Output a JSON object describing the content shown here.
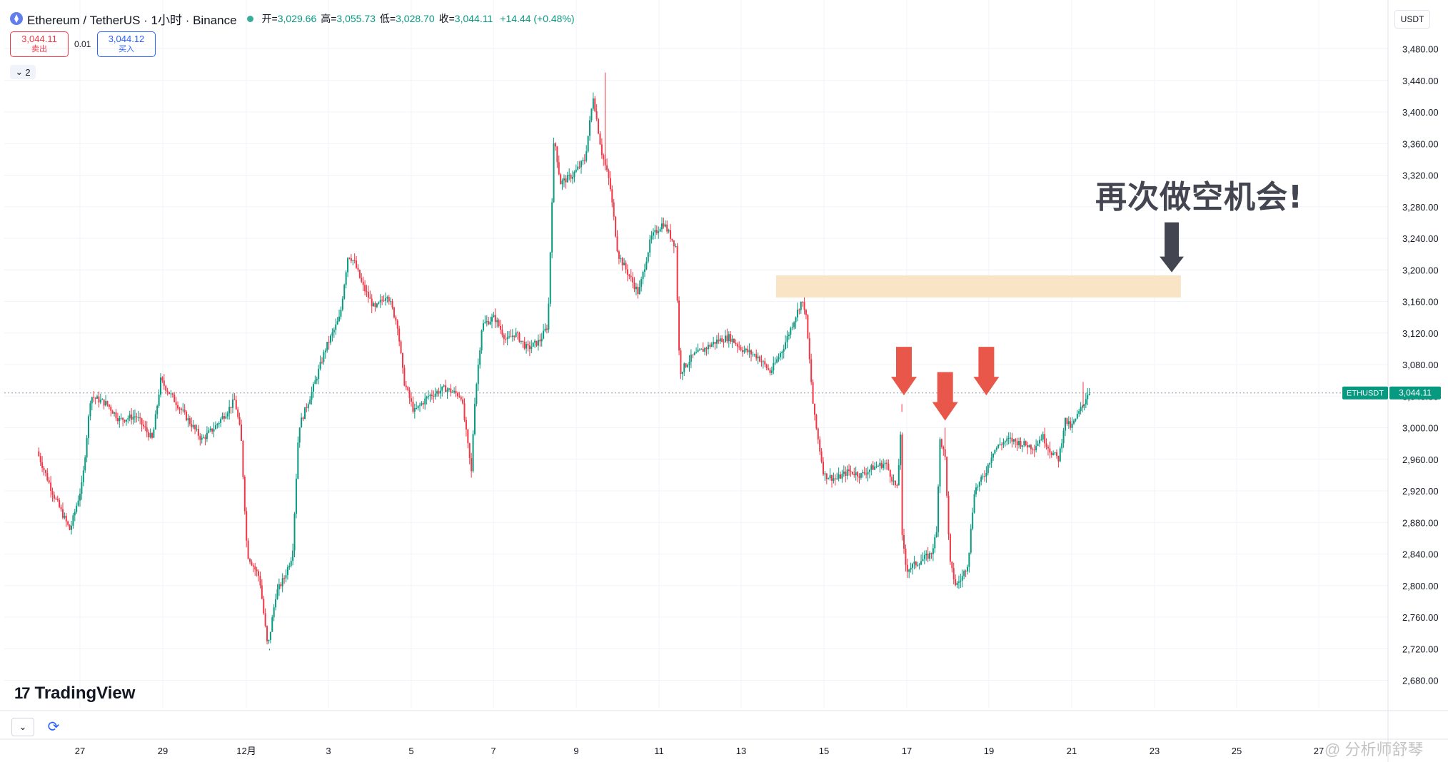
{
  "header": {
    "symbol": "Ethereum / TetherUS · 1小时 · Binance",
    "open_label": "开=",
    "open": "3,029.66",
    "high_label": "高=",
    "high": "3,055.73",
    "low_label": "低=",
    "low": "3,028.70",
    "close_label": "收=",
    "close": "3,044.11",
    "change": "+14.44 (+0.48%)"
  },
  "trade": {
    "sell_price": "3,044.11",
    "sell_label": "卖出",
    "spread": "0.01",
    "buy_price": "3,044.12",
    "buy_label": "买入",
    "collapse_count": "2"
  },
  "currency": "USDT",
  "branding": {
    "logo": "TradingView",
    "watermark": "@ 分析师舒琴"
  },
  "annotation": {
    "text": "再次做空机会!"
  },
  "colors": {
    "up": "#089981",
    "down": "#f23645",
    "zone": "#f9e5c6",
    "arrow_red": "#e8574a",
    "arrow_dark": "#434651"
  },
  "chart_data": {
    "type": "candlestick",
    "symbol": "ETHUSDT",
    "last_price_label": "3,044.11",
    "y_ticks": [
      "3,480.00",
      "3,440.00",
      "3,400.00",
      "3,360.00",
      "3,320.00",
      "3,280.00",
      "3,240.00",
      "3,200.00",
      "3,160.00",
      "3,120.00",
      "3,080.00",
      "3,040.00",
      "3,000.00",
      "2,960.00",
      "2,920.00",
      "2,880.00",
      "2,840.00",
      "2,800.00",
      "2,760.00",
      "2,720.00",
      "2,680.00"
    ],
    "x_ticks": [
      "27",
      "29",
      "12月",
      "3",
      "5",
      "7",
      "9",
      "11",
      "13",
      "15",
      "17",
      "19",
      "21",
      "23",
      "25",
      "27"
    ],
    "ylim": [
      2655,
      3505
    ],
    "resistance_zone": {
      "from": 3165,
      "to": 3193,
      "start_date": "14",
      "end_date": "24"
    },
    "anchors": [
      [
        "26",
        2970
      ],
      [
        "26.4",
        2915
      ],
      [
        "26.8",
        2870
      ],
      [
        "27.1",
        2930
      ],
      [
        "27.3",
        3040
      ],
      [
        "27.7",
        3030
      ],
      [
        "28",
        3010
      ],
      [
        "28.4",
        3015
      ],
      [
        "28.8",
        2985
      ],
      [
        "29",
        3060
      ],
      [
        "29.4",
        3030
      ],
      [
        "29.8",
        3000
      ],
      [
        "30",
        2985
      ],
      [
        "30.3",
        3000
      ],
      [
        "30.6",
        3020
      ],
      [
        "30.8",
        3035
      ],
      [
        "30.95",
        2990
      ],
      [
        "1.1",
        2840
      ],
      [
        "1.4",
        2810
      ],
      [
        "1.6",
        2720
      ],
      [
        "1.8",
        2790
      ],
      [
        "2",
        2810
      ],
      [
        "2.2",
        2840
      ],
      [
        "2.35",
        3000
      ],
      [
        "2.7",
        3050
      ],
      [
        "3",
        3100
      ],
      [
        "3.35",
        3140
      ],
      [
        "3.55",
        3220
      ],
      [
        "3.7",
        3210
      ],
      [
        "3.9",
        3180
      ],
      [
        "4.2",
        3150
      ],
      [
        "4.5",
        3170
      ],
      [
        "4.75",
        3130
      ],
      [
        "4.9",
        3060
      ],
      [
        "5.15",
        3020
      ],
      [
        "5.5",
        3040
      ],
      [
        "5.9",
        3050
      ],
      [
        "6.3",
        3040
      ],
      [
        "6.55",
        2940
      ],
      [
        "6.6",
        3020
      ],
      [
        "6.8",
        3130
      ],
      [
        "7.1",
        3140
      ],
      [
        "7.4",
        3110
      ],
      [
        "7.6",
        3120
      ],
      [
        "7.9",
        3100
      ],
      [
        "8.2",
        3110
      ],
      [
        "8.4",
        3130
      ],
      [
        "8.55",
        3370
      ],
      [
        "8.7",
        3310
      ],
      [
        "9",
        3320
      ],
      [
        "9.3",
        3340
      ],
      [
        "9.5",
        3420
      ],
      [
        "9.7",
        3350
      ],
      [
        "9.9",
        3310
      ],
      [
        "10.1",
        3220
      ],
      [
        "10.4",
        3190
      ],
      [
        "10.6",
        3170
      ],
      [
        "10.9",
        3240
      ],
      [
        "11.2",
        3260
      ],
      [
        "11.5",
        3230
      ],
      [
        "11.6",
        3070
      ],
      [
        "11.9",
        3090
      ],
      [
        "12.2",
        3100
      ],
      [
        "12.5",
        3110
      ],
      [
        "12.8",
        3115
      ],
      [
        "13.1",
        3100
      ],
      [
        "13.5",
        3090
      ],
      [
        "13.8",
        3070
      ],
      [
        "14.1",
        3100
      ],
      [
        "14.4",
        3140
      ],
      [
        "14.55",
        3160
      ],
      [
        "14.65",
        3150
      ],
      [
        "14.85",
        3020
      ],
      [
        "15.1",
        2940
      ],
      [
        "15.4",
        2935
      ],
      [
        "15.7",
        2945
      ],
      [
        "16",
        2940
      ],
      [
        "16.3",
        2950
      ],
      [
        "16.6",
        2955
      ],
      [
        "16.8",
        2930
      ],
      [
        "16.9",
        2920
      ],
      [
        "16.95",
        3020
      ],
      [
        "17",
        2860
      ],
      [
        "17.1",
        2820
      ],
      [
        "17.4",
        2830
      ],
      [
        "17.7",
        2840
      ],
      [
        "17.85",
        2870
      ],
      [
        "17.9",
        2990
      ],
      [
        "18.05",
        2960
      ],
      [
        "18.15",
        2830
      ],
      [
        "18.3",
        2800
      ],
      [
        "18.45",
        2810
      ],
      [
        "18.6",
        2830
      ],
      [
        "18.75",
        2920
      ],
      [
        "19",
        2940
      ],
      [
        "19.2",
        2970
      ],
      [
        "19.4",
        2980
      ],
      [
        "19.6",
        2985
      ],
      [
        "19.9",
        2980
      ],
      [
        "20.2",
        2975
      ],
      [
        "20.4",
        2990
      ],
      [
        "20.6",
        2970
      ],
      [
        "20.8",
        2960
      ],
      [
        "20.95",
        3010
      ],
      [
        "21.1",
        3000
      ],
      [
        "21.3",
        3020
      ],
      [
        "21.4",
        3030
      ],
      [
        "21.5",
        3044.11
      ]
    ],
    "highs": [
      [
        "9.75",
        3450
      ],
      [
        "1.6",
        2718
      ],
      [
        "16.95",
        3030
      ],
      [
        "18.0",
        3000
      ],
      [
        "21.35",
        3058
      ]
    ],
    "arrows": [
      {
        "color": "red",
        "date": "17",
        "tip_price": 3041
      },
      {
        "color": "red",
        "date": "18",
        "tip_price": 3009
      },
      {
        "color": "red",
        "date": "19",
        "tip_price": 3041
      },
      {
        "color": "dark",
        "date": "23.5",
        "tip_price": 3197
      }
    ]
  }
}
